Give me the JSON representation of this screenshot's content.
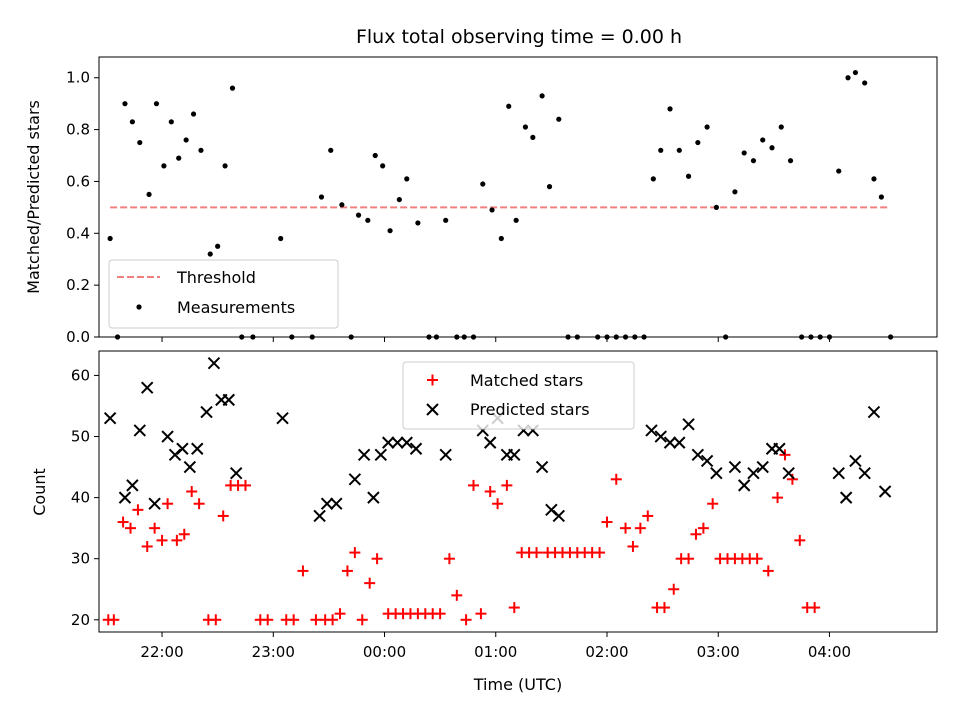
{
  "chart_data": [
    {
      "type": "scatter",
      "title": "Flux total observing time = 0.00 h",
      "xlabel": "",
      "ylabel": "Matched/Predicted stars",
      "ylim": [
        0.0,
        1.08
      ],
      "xlim": [
        "21:26",
        "04:58"
      ],
      "yticks": [
        "0.0",
        "0.2",
        "0.4",
        "0.6",
        "0.8",
        "1.0"
      ],
      "grid": false,
      "legend_position": "lower-left",
      "threshold": {
        "name": "Threshold",
        "value": 0.5,
        "x_start": "21:32",
        "x_end": "04:32",
        "color": "#f08080"
      },
      "measurements": {
        "name": "Measurements",
        "color": "#000000",
        "points": [
          [
            "21:32",
            0.38
          ],
          [
            "21:36",
            0.0
          ],
          [
            "21:40",
            0.9
          ],
          [
            "21:44",
            0.83
          ],
          [
            "21:48",
            0.75
          ],
          [
            "21:53",
            0.55
          ],
          [
            "21:57",
            0.9
          ],
          [
            "22:01",
            0.66
          ],
          [
            "22:05",
            0.83
          ],
          [
            "22:09",
            0.69
          ],
          [
            "22:13",
            0.76
          ],
          [
            "22:17",
            0.86
          ],
          [
            "22:21",
            0.72
          ],
          [
            "22:26",
            0.32
          ],
          [
            "22:30",
            0.35
          ],
          [
            "22:34",
            0.66
          ],
          [
            "22:38",
            0.96
          ],
          [
            "22:43",
            0.0
          ],
          [
            "22:49",
            0.0
          ],
          [
            "23:04",
            0.38
          ],
          [
            "23:10",
            0.0
          ],
          [
            "23:21",
            0.0
          ],
          [
            "23:26",
            0.54
          ],
          [
            "23:31",
            0.72
          ],
          [
            "23:37",
            0.51
          ],
          [
            "23:42",
            0.0
          ],
          [
            "23:46",
            0.47
          ],
          [
            "23:51",
            0.45
          ],
          [
            "23:55",
            0.7
          ],
          [
            "23:59",
            0.66
          ],
          [
            "00:03",
            0.41
          ],
          [
            "00:08",
            0.53
          ],
          [
            "00:12",
            0.61
          ],
          [
            "00:18",
            0.44
          ],
          [
            "00:24",
            0.0
          ],
          [
            "00:28",
            0.0
          ],
          [
            "00:33",
            0.45
          ],
          [
            "00:39",
            0.0
          ],
          [
            "00:43",
            0.0
          ],
          [
            "00:48",
            0.0
          ],
          [
            "00:53",
            0.59
          ],
          [
            "00:58",
            0.49
          ],
          [
            "01:03",
            0.38
          ],
          [
            "01:07",
            0.89
          ],
          [
            "01:11",
            0.45
          ],
          [
            "01:16",
            0.81
          ],
          [
            "01:20",
            0.77
          ],
          [
            "01:25",
            0.93
          ],
          [
            "01:29",
            0.58
          ],
          [
            "01:34",
            0.84
          ],
          [
            "01:39",
            0.0
          ],
          [
            "01:44",
            0.0
          ],
          [
            "01:55",
            0.0
          ],
          [
            "02:00",
            0.0
          ],
          [
            "02:05",
            0.0
          ],
          [
            "02:10",
            0.0
          ],
          [
            "02:15",
            0.0
          ],
          [
            "02:20",
            0.0
          ],
          [
            "02:25",
            0.61
          ],
          [
            "02:29",
            0.72
          ],
          [
            "02:34",
            0.88
          ],
          [
            "02:39",
            0.72
          ],
          [
            "02:44",
            0.62
          ],
          [
            "02:49",
            0.75
          ],
          [
            "02:54",
            0.81
          ],
          [
            "02:59",
            0.5
          ],
          [
            "03:04",
            0.0
          ],
          [
            "03:09",
            0.56
          ],
          [
            "03:14",
            0.71
          ],
          [
            "03:19",
            0.68
          ],
          [
            "03:24",
            0.76
          ],
          [
            "03:29",
            0.73
          ],
          [
            "03:34",
            0.81
          ],
          [
            "03:39",
            0.68
          ],
          [
            "03:45",
            0.0
          ],
          [
            "03:50",
            0.0
          ],
          [
            "03:55",
            0.0
          ],
          [
            "04:00",
            0.0
          ],
          [
            "04:05",
            0.64
          ],
          [
            "04:10",
            1.0
          ],
          [
            "04:14",
            1.02
          ],
          [
            "04:19",
            0.98
          ],
          [
            "04:24",
            0.61
          ],
          [
            "04:28",
            0.54
          ],
          [
            "04:33",
            0.0
          ]
        ]
      }
    },
    {
      "type": "scatter",
      "title": "",
      "xlabel": "Time (UTC)",
      "ylabel": "Count",
      "ylim": [
        18,
        64
      ],
      "xlim": [
        "21:26",
        "04:58"
      ],
      "yticks": [
        "20",
        "30",
        "40",
        "50",
        "60"
      ],
      "xticks": [
        "22:00",
        "23:00",
        "00:00",
        "01:00",
        "02:00",
        "03:00",
        "04:00"
      ],
      "grid": false,
      "legend_position": "upper-center",
      "series": [
        {
          "name": "Matched stars",
          "marker": "plus",
          "color": "#ff0000",
          "points": [
            [
              "21:31",
              20
            ],
            [
              "21:34",
              20
            ],
            [
              "21:39",
              36
            ],
            [
              "21:43",
              35
            ],
            [
              "21:47",
              38
            ],
            [
              "21:52",
              32
            ],
            [
              "21:56",
              35
            ],
            [
              "22:00",
              33
            ],
            [
              "22:03",
              39
            ],
            [
              "22:08",
              33
            ],
            [
              "22:12",
              34
            ],
            [
              "22:16",
              41
            ],
            [
              "22:20",
              39
            ],
            [
              "22:25",
              20
            ],
            [
              "22:29",
              20
            ],
            [
              "22:33",
              37
            ],
            [
              "22:37",
              42
            ],
            [
              "22:41",
              42
            ],
            [
              "22:45",
              42
            ],
            [
              "22:53",
              20
            ],
            [
              "22:57",
              20
            ],
            [
              "23:07",
              20
            ],
            [
              "23:11",
              20
            ],
            [
              "23:16",
              28
            ],
            [
              "23:23",
              20
            ],
            [
              "23:28",
              20
            ],
            [
              "23:32",
              20
            ],
            [
              "23:36",
              21
            ],
            [
              "23:40",
              28
            ],
            [
              "23:44",
              31
            ],
            [
              "23:48",
              20
            ],
            [
              "23:52",
              26
            ],
            [
              "23:56",
              30
            ],
            [
              "00:02",
              21
            ],
            [
              "00:06",
              21
            ],
            [
              "00:10",
              21
            ],
            [
              "00:14",
              21
            ],
            [
              "00:18",
              21
            ],
            [
              "00:22",
              21
            ],
            [
              "00:26",
              21
            ],
            [
              "00:30",
              21
            ],
            [
              "00:35",
              30
            ],
            [
              "00:39",
              24
            ],
            [
              "00:44",
              20
            ],
            [
              "00:48",
              42
            ],
            [
              "00:52",
              21
            ],
            [
              "00:57",
              41
            ],
            [
              "01:01",
              39
            ],
            [
              "01:06",
              42
            ],
            [
              "01:10",
              22
            ],
            [
              "01:14",
              31
            ],
            [
              "01:18",
              31
            ],
            [
              "01:22",
              31
            ],
            [
              "01:28",
              31
            ],
            [
              "01:32",
              31
            ],
            [
              "01:36",
              31
            ],
            [
              "01:40",
              31
            ],
            [
              "01:44",
              31
            ],
            [
              "01:48",
              31
            ],
            [
              "01:52",
              31
            ],
            [
              "01:56",
              31
            ],
            [
              "02:00",
              36
            ],
            [
              "02:05",
              43
            ],
            [
              "02:10",
              35
            ],
            [
              "02:14",
              32
            ],
            [
              "02:18",
              35
            ],
            [
              "02:22",
              37
            ],
            [
              "02:27",
              22
            ],
            [
              "02:31",
              22
            ],
            [
              "02:36",
              25
            ],
            [
              "02:40",
              30
            ],
            [
              "02:44",
              30
            ],
            [
              "02:48",
              34
            ],
            [
              "02:52",
              35
            ],
            [
              "02:57",
              39
            ],
            [
              "03:01",
              30
            ],
            [
              "03:05",
              30
            ],
            [
              "03:09",
              30
            ],
            [
              "03:13",
              30
            ],
            [
              "03:17",
              30
            ],
            [
              "03:21",
              30
            ],
            [
              "03:27",
              28
            ],
            [
              "03:32",
              40
            ],
            [
              "03:36",
              47
            ],
            [
              "03:40",
              43
            ],
            [
              "03:44",
              33
            ],
            [
              "03:48",
              22
            ],
            [
              "03:52",
              22
            ]
          ]
        },
        {
          "name": "Predicted stars",
          "marker": "x",
          "color": "#000000",
          "points": [
            [
              "21:32",
              53
            ],
            [
              "21:40",
              40
            ],
            [
              "21:44",
              42
            ],
            [
              "21:48",
              51
            ],
            [
              "21:52",
              58
            ],
            [
              "21:56",
              39
            ],
            [
              "22:03",
              50
            ],
            [
              "22:07",
              47
            ],
            [
              "22:11",
              48
            ],
            [
              "22:15",
              45
            ],
            [
              "22:19",
              48
            ],
            [
              "22:24",
              54
            ],
            [
              "22:28",
              62
            ],
            [
              "22:32",
              56
            ],
            [
              "22:36",
              56
            ],
            [
              "22:40",
              44
            ],
            [
              "23:05",
              53
            ],
            [
              "23:25",
              37
            ],
            [
              "23:29",
              39
            ],
            [
              "23:34",
              39
            ],
            [
              "23:44",
              43
            ],
            [
              "23:49",
              47
            ],
            [
              "23:54",
              40
            ],
            [
              "23:58",
              47
            ],
            [
              "00:02",
              49
            ],
            [
              "00:07",
              49
            ],
            [
              "00:12",
              49
            ],
            [
              "00:17",
              48
            ],
            [
              "00:33",
              47
            ],
            [
              "00:53",
              51
            ],
            [
              "00:57",
              49
            ],
            [
              "01:01",
              53
            ],
            [
              "01:06",
              47
            ],
            [
              "01:10",
              47
            ],
            [
              "01:15",
              51
            ],
            [
              "01:20",
              51
            ],
            [
              "01:25",
              45
            ],
            [
              "01:30",
              38
            ],
            [
              "01:34",
              37
            ],
            [
              "02:24",
              51
            ],
            [
              "02:29",
              50
            ],
            [
              "02:34",
              49
            ],
            [
              "02:39",
              49
            ],
            [
              "02:44",
              52
            ],
            [
              "02:49",
              47
            ],
            [
              "02:54",
              46
            ],
            [
              "02:59",
              44
            ],
            [
              "03:09",
              45
            ],
            [
              "03:14",
              42
            ],
            [
              "03:19",
              44
            ],
            [
              "03:24",
              45
            ],
            [
              "03:29",
              48
            ],
            [
              "03:33",
              48
            ],
            [
              "03:38",
              44
            ],
            [
              "04:05",
              44
            ],
            [
              "04:09",
              40
            ],
            [
              "04:14",
              46
            ],
            [
              "04:19",
              44
            ],
            [
              "04:24",
              54
            ],
            [
              "04:30",
              41
            ]
          ]
        }
      ]
    }
  ]
}
